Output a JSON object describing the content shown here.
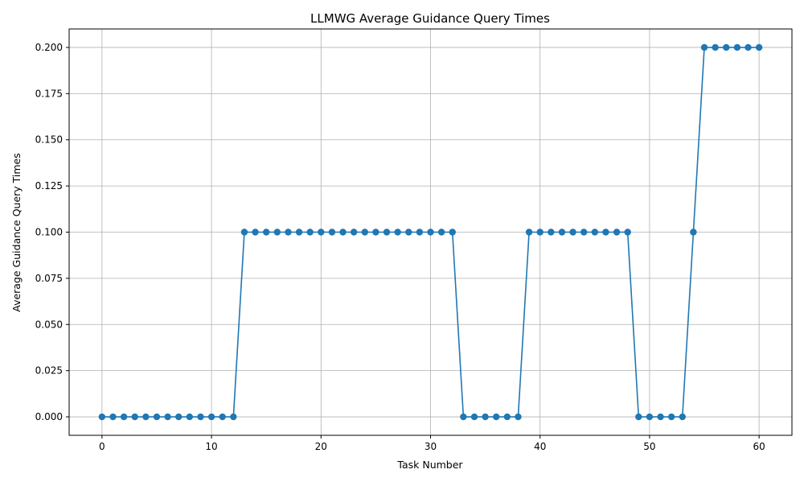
{
  "chart_data": {
    "type": "line",
    "title": "LLMWG Average Guidance Query Times",
    "xlabel": "Task Number",
    "ylabel": "Average Guidance Query Times",
    "xlim": [
      -3,
      63
    ],
    "ylim": [
      -0.01,
      0.21
    ],
    "x_ticks": [
      0,
      10,
      20,
      30,
      40,
      50,
      60
    ],
    "x_tick_labels": [
      "0",
      "10",
      "20",
      "30",
      "40",
      "50",
      "60"
    ],
    "y_ticks": [
      0.0,
      0.025,
      0.05,
      0.075,
      0.1,
      0.125,
      0.15,
      0.175,
      0.2
    ],
    "y_tick_labels": [
      "0.000",
      "0.025",
      "0.050",
      "0.075",
      "0.100",
      "0.125",
      "0.150",
      "0.175",
      "0.200"
    ],
    "grid": true,
    "legend": false,
    "series": [
      {
        "color": "#1f77b4",
        "marker": "circle",
        "x": [
          0,
          1,
          2,
          3,
          4,
          5,
          6,
          7,
          8,
          9,
          10,
          11,
          12,
          13,
          14,
          15,
          16,
          17,
          18,
          19,
          20,
          21,
          22,
          23,
          24,
          25,
          26,
          27,
          28,
          29,
          30,
          31,
          32,
          33,
          34,
          35,
          36,
          37,
          38,
          39,
          40,
          41,
          42,
          43,
          44,
          45,
          46,
          47,
          48,
          49,
          50,
          51,
          52,
          53,
          54,
          55,
          56,
          57,
          58,
          59,
          60
        ],
        "y": [
          0,
          0,
          0,
          0,
          0,
          0,
          0,
          0,
          0,
          0,
          0,
          0,
          0,
          0.1,
          0.1,
          0.1,
          0.1,
          0.1,
          0.1,
          0.1,
          0.1,
          0.1,
          0.1,
          0.1,
          0.1,
          0.1,
          0.1,
          0.1,
          0.1,
          0.1,
          0.1,
          0.1,
          0.1,
          0,
          0,
          0,
          0,
          0,
          0,
          0.1,
          0.1,
          0.1,
          0.1,
          0.1,
          0.1,
          0.1,
          0.1,
          0.1,
          0.1,
          0,
          0,
          0,
          0,
          0,
          0.1,
          0.2,
          0.2,
          0.2,
          0.2,
          0.2,
          0.2
        ]
      }
    ]
  }
}
